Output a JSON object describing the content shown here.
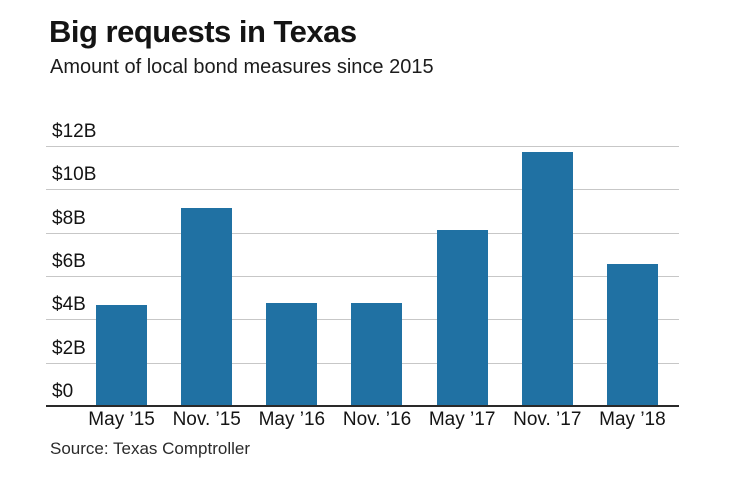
{
  "page": {
    "title": "Big requests in Texas",
    "subtitle": "Amount of local bond measures since 2015",
    "source": "Source: Texas Comptroller"
  },
  "chart_data": {
    "type": "bar",
    "title": "Big requests in Texas",
    "subtitle": "Amount of local bond measures since 2015",
    "categories": [
      "May ’15",
      "Nov. ’15",
      "May ’16",
      "Nov. ’16",
      "May ’17",
      "Nov. ’17",
      "May ’18"
    ],
    "values": [
      4.6,
      9.1,
      4.7,
      4.7,
      8.1,
      11.7,
      6.5
    ],
    "unit": "billions of dollars",
    "ylabel": "",
    "xlabel": "",
    "ylim": [
      0,
      12
    ],
    "y_ticks": [
      {
        "value": 0,
        "label": "$0"
      },
      {
        "value": 2,
        "label": "$2B"
      },
      {
        "value": 4,
        "label": "$4B"
      },
      {
        "value": 6,
        "label": "$6B"
      },
      {
        "value": 8,
        "label": "$8B"
      },
      {
        "value": 10,
        "label": "$10B"
      },
      {
        "value": 12,
        "label": "$12B"
      }
    ],
    "grid": true,
    "legend": false,
    "bar_color": "#2071a3",
    "gridline_color": "#c7c7c7",
    "axis_line_color": "#2a2a2a",
    "source": "Source: Texas Comptroller"
  }
}
